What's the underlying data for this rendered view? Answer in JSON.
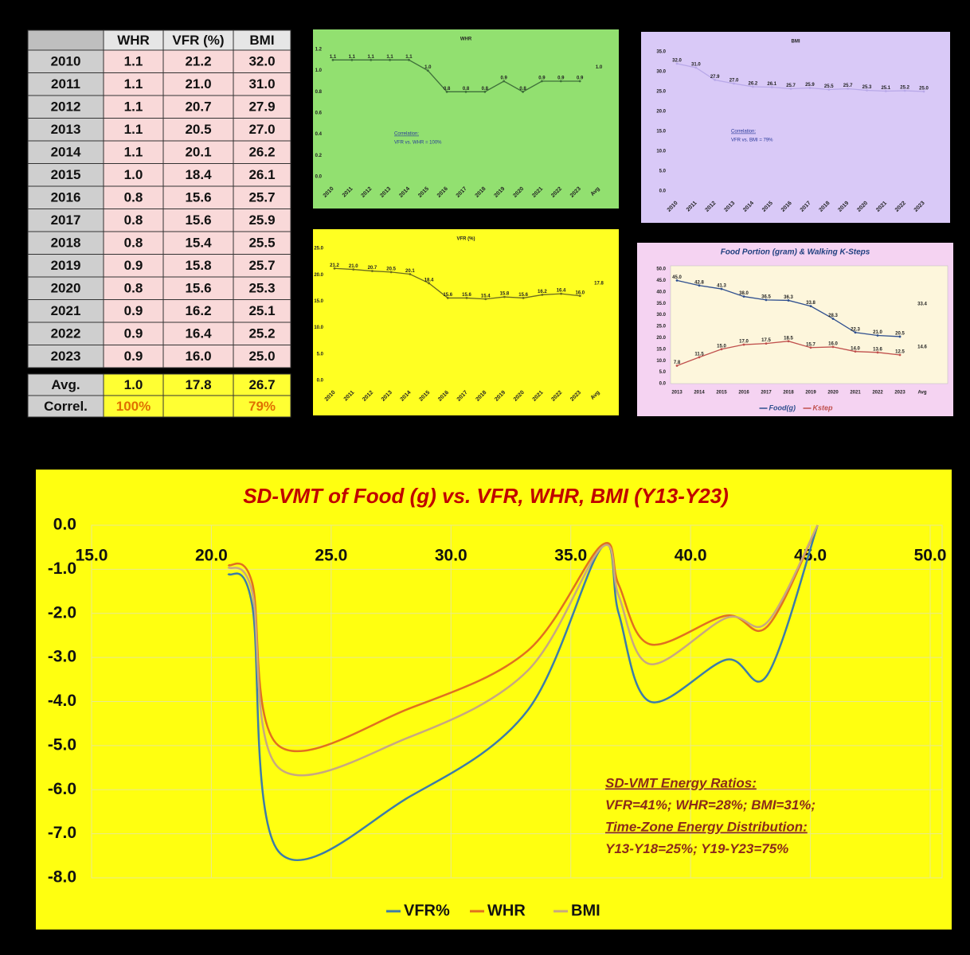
{
  "table": {
    "header": [
      null,
      "WHR",
      "VFR (%)",
      "BMI"
    ],
    "rows": [
      [
        "2010",
        "1.1",
        "21.2",
        "32.0"
      ],
      [
        "2011",
        "1.1",
        "21.0",
        "31.0"
      ],
      [
        "2012",
        "1.1",
        "20.7",
        "27.9"
      ],
      [
        "2013",
        "1.1",
        "20.5",
        "27.0"
      ],
      [
        "2014",
        "1.1",
        "20.1",
        "26.2"
      ],
      [
        "2015",
        "1.0",
        "18.4",
        "26.1"
      ],
      [
        "2016",
        "0.8",
        "15.6",
        "25.7"
      ],
      [
        "2017",
        "0.8",
        "15.6",
        "25.9"
      ],
      [
        "2018",
        "0.8",
        "15.4",
        "25.5"
      ],
      [
        "2019",
        "0.9",
        "15.8",
        "25.7"
      ],
      [
        "2020",
        "0.8",
        "15.6",
        "25.3"
      ],
      [
        "2021",
        "0.9",
        "16.2",
        "25.1"
      ],
      [
        "2022",
        "0.9",
        "16.4",
        "25.2"
      ],
      [
        "2023",
        "0.9",
        "16.0",
        "25.0"
      ]
    ],
    "footer": [
      [
        "Avg.",
        "1.0",
        "17.8",
        "26.7"
      ],
      [
        "Correl.",
        "100%",
        null,
        "79%"
      ]
    ]
  },
  "chart_data": [
    {
      "type": "line",
      "title": "WHR",
      "categories": [
        "2010",
        "2011",
        "2012",
        "2013",
        "2014",
        "2015",
        "2016",
        "2017",
        "2018",
        "2019",
        "2020",
        "2021",
        "2022",
        "2023",
        "Avg"
      ],
      "series": [
        {
          "color": "#3f6f3a",
          "values": [
            1.1,
            1.1,
            1.1,
            1.1,
            1.1,
            1.0,
            0.8,
            0.8,
            0.8,
            0.9,
            0.8,
            0.9,
            0.9,
            0.9,
            null
          ],
          "value_labels": [
            "1.1",
            "1.1",
            "1.1",
            "1.1",
            "1.1",
            "1.0",
            "0.8",
            "0.8",
            "0.8",
            "0.9",
            "0.8",
            "0.9",
            "0.9",
            "0.9",
            null
          ]
        },
        {
          "color": "#3f6f3a",
          "values": [
            null,
            null,
            null,
            null,
            null,
            null,
            null,
            null,
            null,
            null,
            null,
            null,
            null,
            null,
            1.0
          ],
          "value_labels": [
            null,
            null,
            null,
            null,
            null,
            null,
            null,
            null,
            null,
            null,
            null,
            null,
            null,
            null,
            "1.0"
          ]
        }
      ],
      "ylim": [
        0,
        1.2
      ],
      "yticks": [
        {
          "value": 0,
          "label": "0.0"
        },
        {
          "value": 0.2,
          "label": "0.2"
        },
        {
          "value": 0.4,
          "label": "0.4"
        },
        {
          "value": 0.6,
          "label": "0.6"
        },
        {
          "value": 0.8,
          "label": "0.8"
        },
        {
          "value": 1.0,
          "label": "1.0"
        },
        {
          "value": 1.2,
          "label": "1.2"
        }
      ],
      "annotations": [
        "Correlation:",
        "VFR vs. WHR = 100%"
      ]
    },
    {
      "type": "line",
      "title": "VFR (%)",
      "categories": [
        "2010",
        "2011",
        "2012",
        "2013",
        "2014",
        "2015",
        "2016",
        "2017",
        "2018",
        "2019",
        "2020",
        "2021",
        "2022",
        "2023",
        "Avg"
      ],
      "series": [
        {
          "color": "#6b6b20",
          "values": [
            21.2,
            21.0,
            20.7,
            20.5,
            20.1,
            18.4,
            15.6,
            15.6,
            15.4,
            15.8,
            15.6,
            16.2,
            16.4,
            16.0,
            null
          ],
          "value_labels": [
            "21.2",
            "21.0",
            "20.7",
            "20.5",
            "20.1",
            "18.4",
            "15.6",
            "15.6",
            "15.4",
            "15.8",
            "15.6",
            "16.2",
            "16.4",
            "16.0",
            null
          ]
        },
        {
          "color": "#6b6b20",
          "values": [
            null,
            null,
            null,
            null,
            null,
            null,
            null,
            null,
            null,
            null,
            null,
            null,
            null,
            null,
            17.8
          ],
          "value_labels": [
            null,
            null,
            null,
            null,
            null,
            null,
            null,
            null,
            null,
            null,
            null,
            null,
            null,
            null,
            "17.8"
          ]
        }
      ],
      "ylim": [
        0,
        25
      ],
      "yticks": [
        {
          "value": 0,
          "label": "0.0"
        },
        {
          "value": 5,
          "label": "5.0"
        },
        {
          "value": 10,
          "label": "10.0"
        },
        {
          "value": 15,
          "label": "15.0"
        },
        {
          "value": 20,
          "label": "20.0"
        },
        {
          "value": 25,
          "label": "25.0"
        }
      ]
    },
    {
      "type": "line",
      "title": "BMI",
      "categories": [
        "2010",
        "2011",
        "2012",
        "2013",
        "2014",
        "2015",
        "2016",
        "2017",
        "2018",
        "2019",
        "2020",
        "2021",
        "2022",
        "2023"
      ],
      "series": [
        {
          "color": "#b8a8e8",
          "values": [
            32.0,
            31.0,
            27.9,
            27.0,
            26.2,
            26.1,
            25.7,
            25.9,
            25.5,
            25.7,
            25.3,
            25.1,
            25.2,
            25.0
          ],
          "value_labels": [
            "32.0",
            "31.0",
            "27.9",
            "27.0",
            "26.2",
            "26.1",
            "25.7",
            "25.9",
            "25.5",
            "25.7",
            "25.3",
            "25.1",
            "25.2",
            "25.0"
          ]
        }
      ],
      "ylim": [
        0,
        35
      ],
      "yticks": [
        {
          "value": 0,
          "label": "0.0"
        },
        {
          "value": 5,
          "label": "5.0"
        },
        {
          "value": 10,
          "label": "10.0"
        },
        {
          "value": 15,
          "label": "15.0"
        },
        {
          "value": 20,
          "label": "20.0"
        },
        {
          "value": 25,
          "label": "25.0"
        },
        {
          "value": 30,
          "label": "30.0"
        },
        {
          "value": 35,
          "label": "35.0"
        }
      ],
      "annotations": [
        "Correlation:",
        "VFR vs. BMI = 79%"
      ]
    },
    {
      "type": "line",
      "title": "Food Portion (gram) & Walking K-Steps",
      "categories": [
        "2013",
        "2014",
        "2015",
        "2016",
        "2017",
        "2018",
        "2019",
        "2020",
        "2021",
        "2022",
        "2023",
        "Avg"
      ],
      "series": [
        {
          "name": "Food(g)",
          "color": "#2f4f8f",
          "values": [
            45.0,
            42.8,
            41.3,
            38.0,
            36.5,
            36.3,
            33.8,
            28.3,
            22.3,
            21.0,
            20.5,
            null
          ],
          "value_labels": [
            "45.0",
            "42.8",
            "41.3",
            "38.0",
            "36.5",
            "36.3",
            "33.8",
            "28.3",
            "22.3",
            "21.0",
            "20.5",
            null
          ]
        },
        {
          "name": "Kstep",
          "color": "#c0504d",
          "values": [
            7.8,
            11.5,
            15.0,
            17.0,
            17.5,
            18.5,
            15.7,
            16.0,
            14.0,
            13.6,
            12.5,
            null
          ],
          "value_labels": [
            "7.8",
            "11.5",
            "15.0",
            "17.0",
            "17.5",
            "18.5",
            "15.7",
            "16.0",
            "14.0",
            "13.6",
            "12.5",
            null
          ]
        },
        {
          "color": "#2f4f8f",
          "values": [
            null,
            null,
            null,
            null,
            null,
            null,
            null,
            null,
            null,
            null,
            null,
            33.4
          ],
          "value_labels": [
            null,
            null,
            null,
            null,
            null,
            null,
            null,
            null,
            null,
            null,
            null,
            "33.4"
          ]
        },
        {
          "color": "#c0504d",
          "values": [
            null,
            null,
            null,
            null,
            null,
            null,
            null,
            null,
            null,
            null,
            null,
            14.6
          ],
          "value_labels": [
            null,
            null,
            null,
            null,
            null,
            null,
            null,
            null,
            null,
            null,
            null,
            "14.6"
          ]
        }
      ],
      "ylim": [
        0,
        50
      ],
      "yticks": [
        {
          "value": 0,
          "label": "0.0"
        },
        {
          "value": 5,
          "label": "5.0"
        },
        {
          "value": 10,
          "label": "10.0"
        },
        {
          "value": 15,
          "label": "15.0"
        },
        {
          "value": 20,
          "label": "20.0"
        },
        {
          "value": 25,
          "label": "25.0"
        },
        {
          "value": 30,
          "label": "30.0"
        },
        {
          "value": 35,
          "label": "35.0"
        },
        {
          "value": 40,
          "label": "40.0"
        },
        {
          "value": 45,
          "label": "45.0"
        },
        {
          "value": 50,
          "label": "50.0"
        }
      ]
    },
    {
      "type": "scatter",
      "title": "SD-VMT of Food (g) vs. VFR, WHR, BMI  (Y13-Y23)",
      "x": [
        20.7,
        21.7,
        22.8,
        28.3,
        33.2,
        36.3,
        37.0,
        38.3,
        41.5,
        43.2,
        45.3
      ],
      "series": [
        {
          "name": "VFR%",
          "color": "#3d7ca8",
          "values": [
            -1.1,
            -1.8,
            -7.4,
            -6.15,
            -4.2,
            -0.5,
            -2.0,
            -4.0,
            -3.05,
            -3.4,
            0.0
          ]
        },
        {
          "name": "WHR",
          "color": "#e07020",
          "values": [
            -0.9,
            -1.3,
            -5.0,
            -4.15,
            -2.85,
            -0.45,
            -1.35,
            -2.7,
            -2.05,
            -2.3,
            0.0
          ]
        },
        {
          "name": "BMI",
          "color": "#c8a880",
          "values": [
            -0.95,
            -1.5,
            -5.5,
            -4.8,
            -3.3,
            -0.5,
            -1.6,
            -3.15,
            -2.1,
            -2.2,
            0.0
          ]
        }
      ],
      "xlim": [
        15,
        50
      ],
      "xticks": [
        {
          "value": 15,
          "label": "15.0"
        },
        {
          "value": 20,
          "label": "20.0"
        },
        {
          "value": 25,
          "label": "25.0"
        },
        {
          "value": 30,
          "label": "30.0"
        },
        {
          "value": 35,
          "label": "35.0"
        },
        {
          "value": 40,
          "label": "40.0"
        },
        {
          "value": 45,
          "label": "45.0"
        },
        {
          "value": 50,
          "label": "50.0"
        }
      ],
      "ylim": [
        -8,
        0
      ],
      "yticks": [
        {
          "value": 0,
          "label": "0.0"
        },
        {
          "value": -1,
          "label": "-1.0"
        },
        {
          "value": -2,
          "label": "-2.0"
        },
        {
          "value": -3,
          "label": "-3.0"
        },
        {
          "value": -4,
          "label": "-4.0"
        },
        {
          "value": -5,
          "label": "-5.0"
        },
        {
          "value": -6,
          "label": "-6.0"
        },
        {
          "value": -7,
          "label": "-7.0"
        },
        {
          "value": -8,
          "label": "-8.0"
        }
      ],
      "grid": true,
      "smooth": true,
      "annotations": [
        "SD-VMT Energy Ratios:",
        "VFR=41%; WHR=28%;  BMI=31%;",
        "Time-Zone Energy Distribution:",
        "Y13-Y18=25%;  Y19-Y23=75%"
      ]
    }
  ]
}
